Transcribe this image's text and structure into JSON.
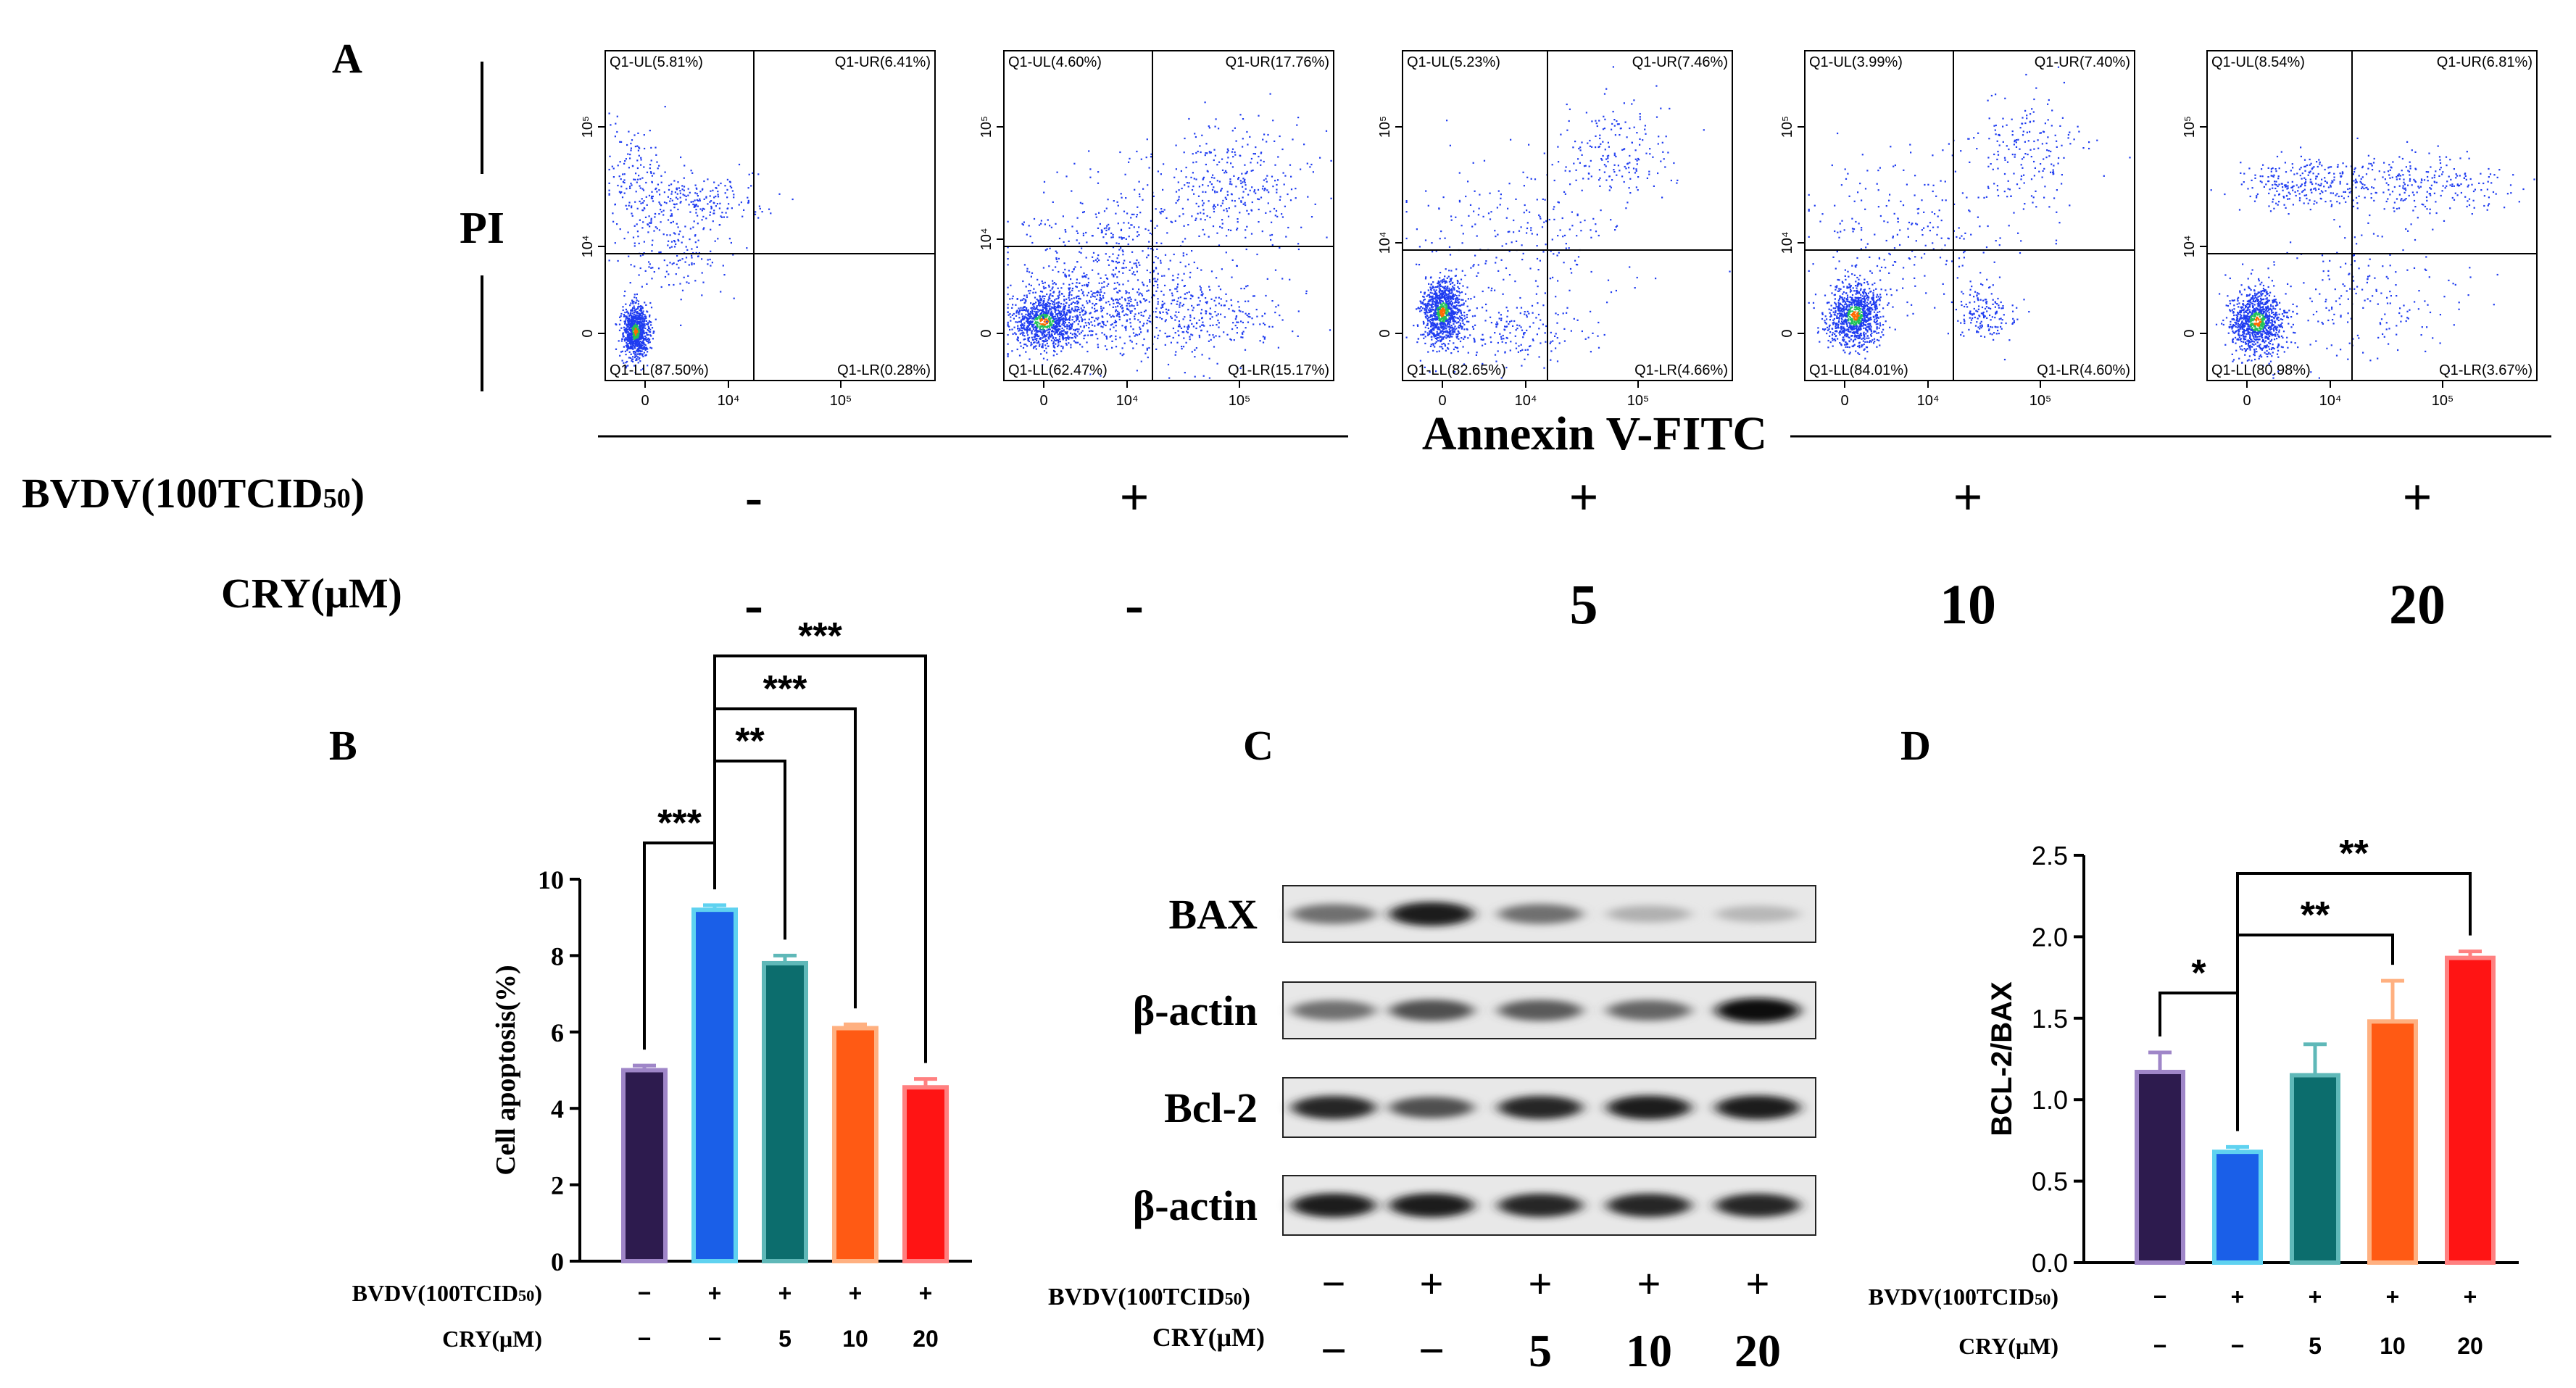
{
  "panel_letters": {
    "a": "A",
    "b": "B",
    "c": "C",
    "d": "D"
  },
  "flow": {
    "y_axis_label": "PI",
    "x_axis_label": "Annexin V-FITC",
    "x_tick_labels": [
      "0",
      "10⁴",
      "10⁵"
    ],
    "y_tick_labels": [
      "0",
      "10⁴",
      "10⁵"
    ],
    "plots": [
      {
        "ul": "Q1-UL(5.81%)",
        "ur": "Q1-UR(6.41%)",
        "ll": "Q1-LL(87.50%)",
        "lr": "Q1-LR(0.28%)"
      },
      {
        "ul": "Q1-UL(4.60%)",
        "ur": "Q1-UR(17.76%)",
        "ll": "Q1-LL(62.47%)",
        "lr": "Q1-LR(15.17%)"
      },
      {
        "ul": "Q1-UL(5.23%)",
        "ur": "Q1-UR(7.46%)",
        "ll": "Q1-LL(82.65%)",
        "lr": "Q1-LR(4.66%)"
      },
      {
        "ul": "Q1-UL(3.99%)",
        "ur": "Q1-UR(7.40%)",
        "ll": "Q1-LL(84.01%)",
        "lr": "Q1-LR(4.60%)"
      },
      {
        "ul": "Q1-UL(8.54%)",
        "ur": "Q1-UR(6.81%)",
        "ll": "Q1-LL(80.98%)",
        "lr": "Q1-LR(3.67%)"
      }
    ],
    "treatment": {
      "bvdv_label": "BVDV(100TCID",
      "bvdv_sub": "50",
      "bvdv_close": ")",
      "cry_label": "CRY(μM)",
      "bvdv_values": [
        "-",
        "+",
        "+",
        "+",
        "+"
      ],
      "cry_values": [
        "-",
        "-",
        "5",
        "10",
        "20"
      ]
    }
  },
  "western": {
    "band_labels": [
      "BAX",
      "β-actin",
      "Bcl-2",
      "β-actin"
    ],
    "bvdv_label": "BVDV(100TCID",
    "bvdv_sub": "50",
    "bvdv_close": ")",
    "cry_label": "CRY(μM)",
    "bvdv_values": [
      "−",
      "+",
      "+",
      "+",
      "+"
    ],
    "cry_values": [
      "−",
      "−",
      "5",
      "10",
      "20"
    ]
  },
  "colors": {
    "group1": "#2d1b4e",
    "group1_edge": "#9f86c8",
    "group2": "#1a5fe8",
    "group2_edge": "#5fd2f0",
    "group3": "#0c6d6d",
    "group3_edge": "#5fb8b8",
    "group4": "#ff5a14",
    "group4_edge": "#ffb080",
    "group5": "#ff1414",
    "group5_edge": "#ff8080",
    "dots": "#1f3cf0"
  },
  "chart_data": [
    {
      "panel": "B",
      "type": "bar",
      "ylabel": "Cell apoptosis(%)",
      "ylim": [
        0,
        10
      ],
      "yticks": [
        "0",
        "2",
        "4",
        "6",
        "8",
        "10"
      ],
      "values": [
        5.0,
        9.2,
        7.8,
        6.1,
        4.55
      ],
      "errors": [
        0.12,
        0.12,
        0.2,
        0.1,
        0.22
      ],
      "bvdv_label": "BVDV(100TCID",
      "bvdv_sub": "50",
      "bvdv_close": ")",
      "cry_label": "CRY(μM)",
      "bvdv_values": [
        "−",
        "+",
        "+",
        "+",
        "+"
      ],
      "cry_values": [
        "−",
        "−",
        "5",
        "10",
        "20"
      ],
      "significance": [
        {
          "from": 0,
          "to": 1,
          "label": "***"
        },
        {
          "from": 1,
          "to": 2,
          "label": "**"
        },
        {
          "from": 1,
          "to": 3,
          "label": "***"
        },
        {
          "from": 1,
          "to": 4,
          "label": "***"
        }
      ]
    },
    {
      "panel": "D",
      "type": "bar",
      "ylabel": "BCL-2/BAX",
      "ylim": [
        0,
        2.5
      ],
      "yticks": [
        "0.0",
        "0.5",
        "1.0",
        "1.5",
        "2.0",
        "2.5"
      ],
      "values": [
        1.17,
        0.68,
        1.15,
        1.48,
        1.87
      ],
      "errors": [
        0.12,
        0.03,
        0.19,
        0.25,
        0.04
      ],
      "bvdv_label": "BVDV(100TCID",
      "bvdv_sub": "50",
      "bvdv_close": ")",
      "cry_label": "CRY(μM)",
      "bvdv_values": [
        "−",
        "+",
        "+",
        "+",
        "+"
      ],
      "cry_values": [
        "−",
        "−",
        "5",
        "10",
        "20"
      ],
      "significance": [
        {
          "from": 0,
          "to": 1,
          "label": "*"
        },
        {
          "from": 1,
          "to": 3,
          "label": "**"
        },
        {
          "from": 1,
          "to": 4,
          "label": "**"
        }
      ]
    }
  ]
}
